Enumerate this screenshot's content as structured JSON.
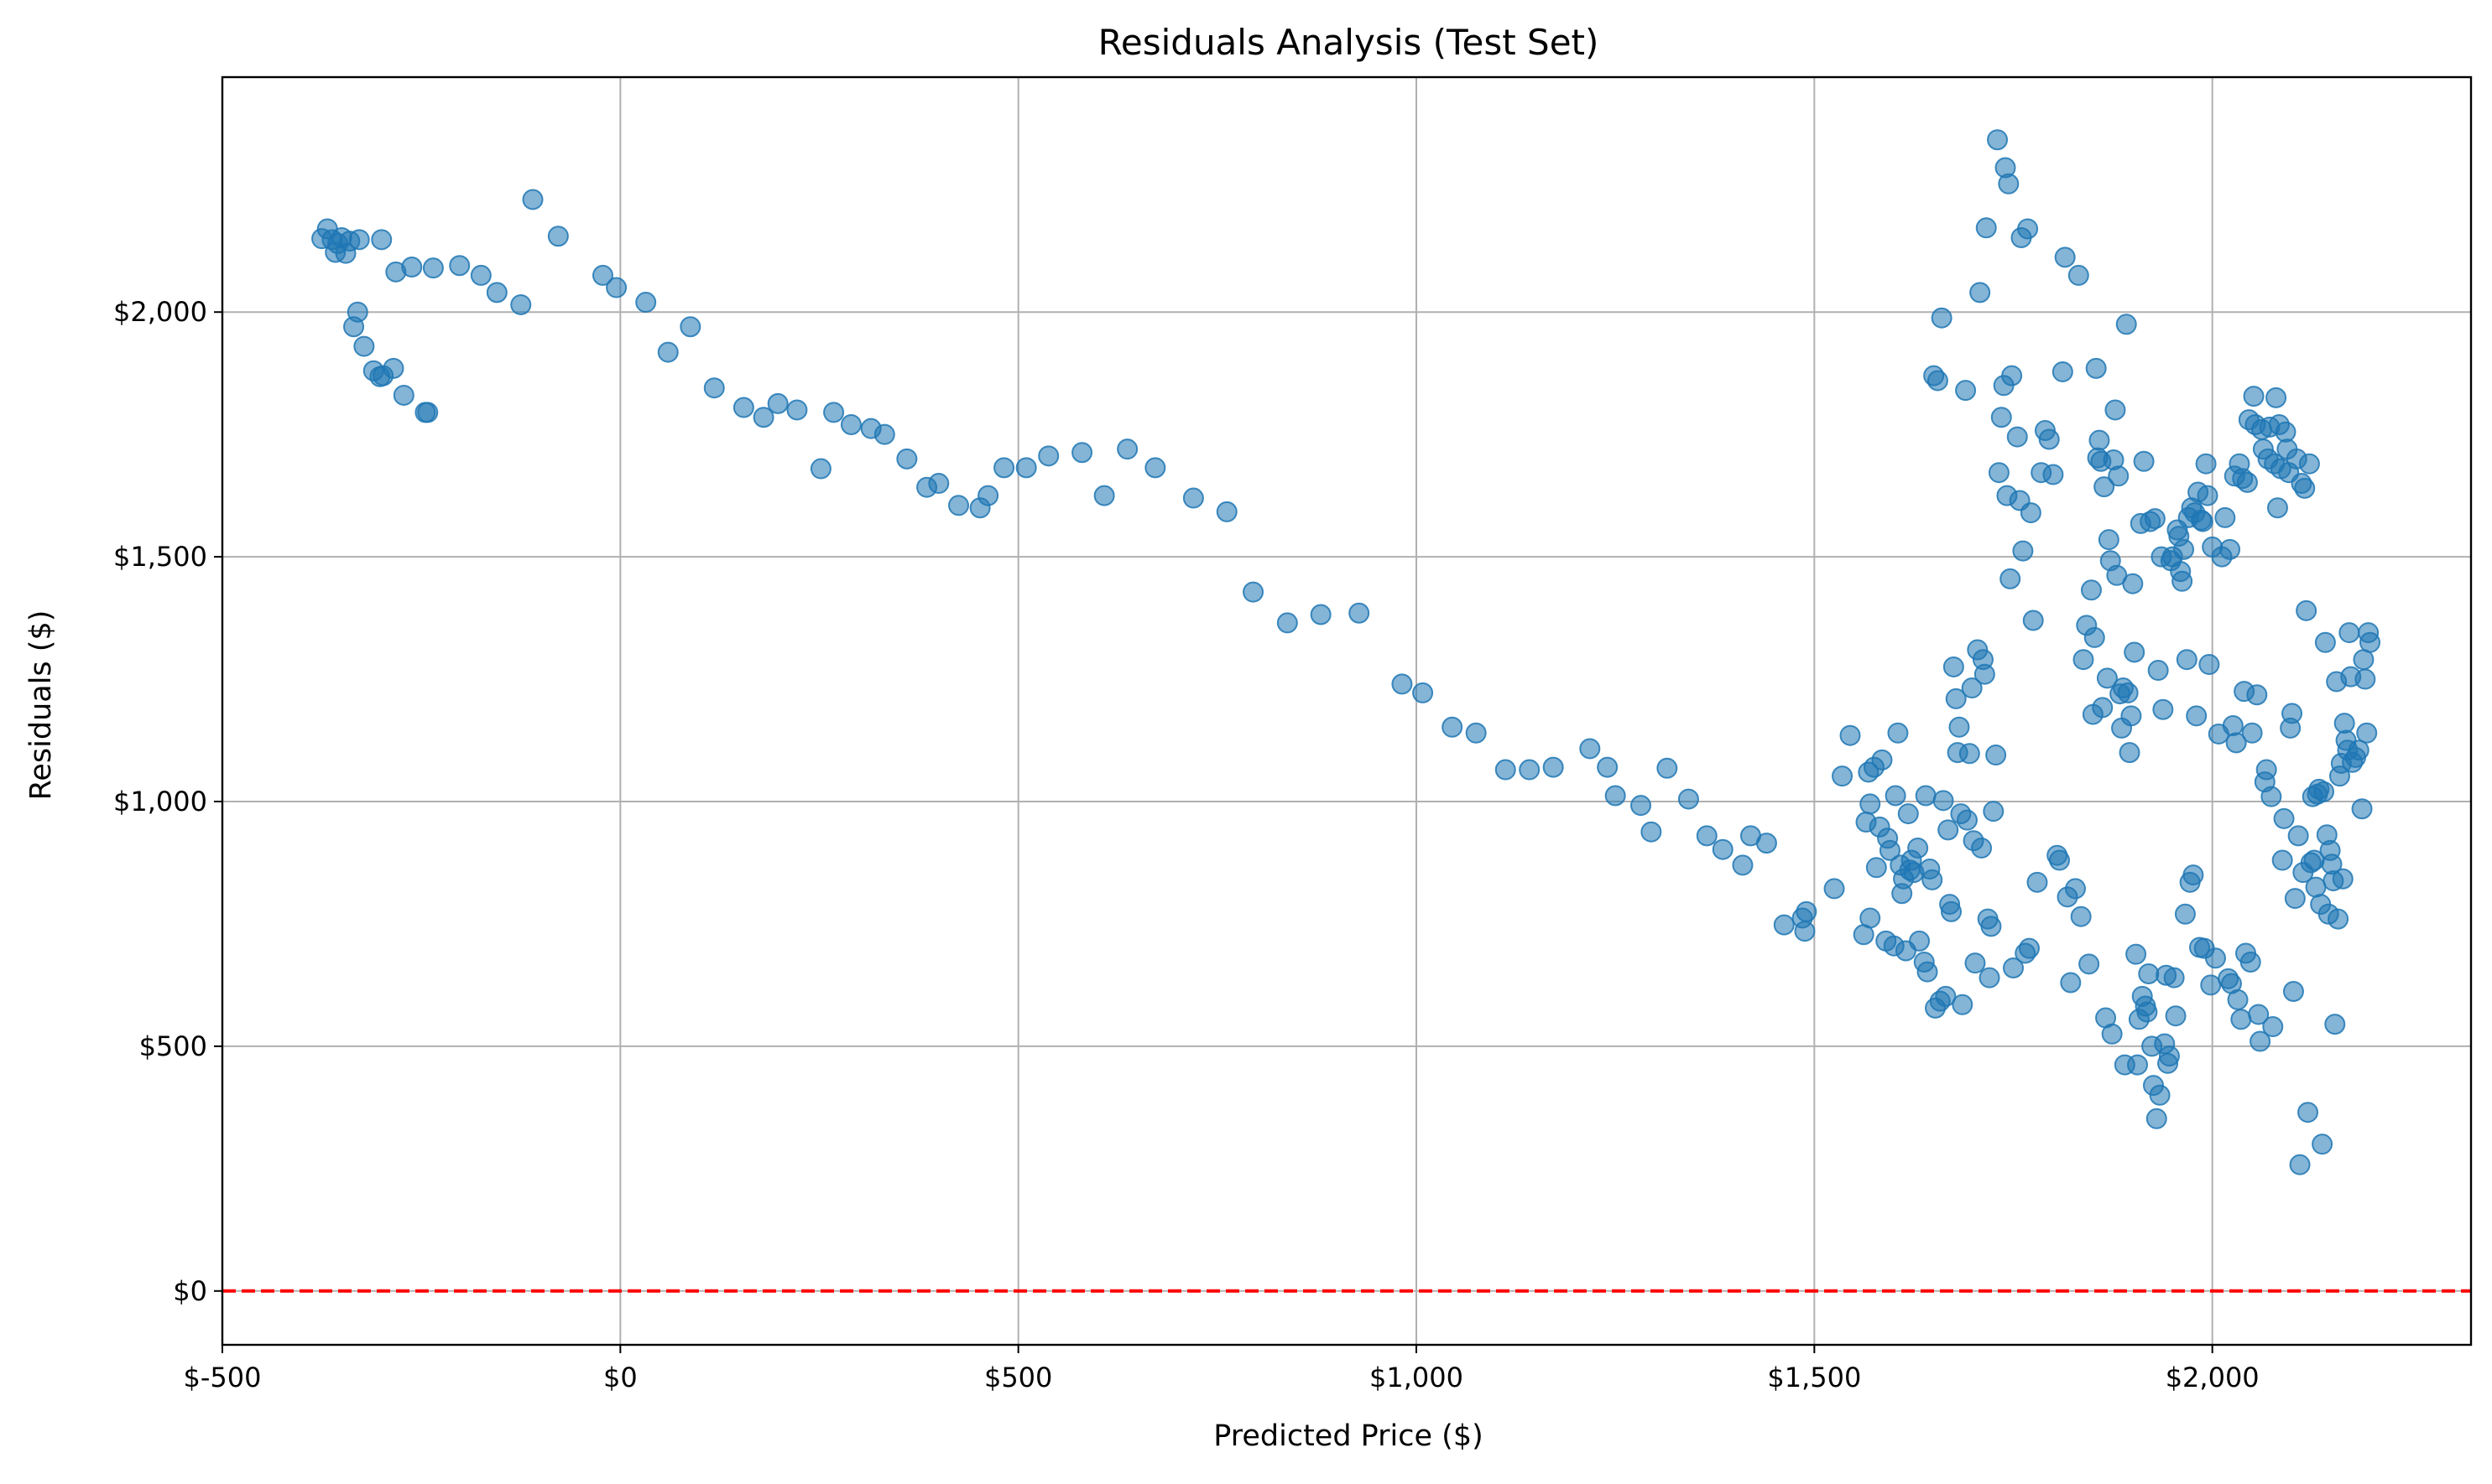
{
  "chart_data": {
    "type": "scatter",
    "title": "Residuals Analysis (Test Set)",
    "xlabel": "Predicted Price ($)",
    "ylabel": "Residuals ($)",
    "xlim": [
      -500,
      2325
    ],
    "ylim": [
      -110,
      2480
    ],
    "xticks": [
      {
        "value": -500,
        "label": "$-500"
      },
      {
        "value": 0,
        "label": "$0"
      },
      {
        "value": 500,
        "label": "$500"
      },
      {
        "value": 1000,
        "label": "$1,000"
      },
      {
        "value": 1500,
        "label": "$1,500"
      },
      {
        "value": 2000,
        "label": "$2,000"
      }
    ],
    "yticks": [
      {
        "value": 0,
        "label": "$0"
      },
      {
        "value": 500,
        "label": "$500"
      },
      {
        "value": 1000,
        "label": "$1,000"
      },
      {
        "value": 1500,
        "label": "$1,500"
      },
      {
        "value": 2000,
        "label": "$2,000"
      }
    ],
    "grid": true,
    "reference_line": {
      "y": 0,
      "color": "#ff0000",
      "style": "dashed"
    },
    "marker_color": "#1f77b4",
    "marker_alpha": 0.55,
    "points": [
      [
        -375,
        2150
      ],
      [
        -368,
        2170
      ],
      [
        -362,
        2148
      ],
      [
        -358,
        2122
      ],
      [
        -355,
        2140
      ],
      [
        -350,
        2152
      ],
      [
        -345,
        2120
      ],
      [
        -340,
        2145
      ],
      [
        -335,
        1970
      ],
      [
        -330,
        2000
      ],
      [
        -328,
        2148
      ],
      [
        -322,
        1930
      ],
      [
        -310,
        1880
      ],
      [
        -302,
        1868
      ],
      [
        -300,
        2148
      ],
      [
        -298,
        1870
      ],
      [
        -285,
        1885
      ],
      [
        -282,
        2082
      ],
      [
        -272,
        1830
      ],
      [
        -262,
        2092
      ],
      [
        -245,
        1795
      ],
      [
        -242,
        1795
      ],
      [
        -235,
        2090
      ],
      [
        -202,
        2095
      ],
      [
        -175,
        2075
      ],
      [
        -155,
        2040
      ],
      [
        -125,
        2015
      ],
      [
        -110,
        2230
      ],
      [
        -78,
        2155
      ],
      [
        -22,
        2075
      ],
      [
        -5,
        2050
      ],
      [
        32,
        2020
      ],
      [
        60,
        1918
      ],
      [
        88,
        1970
      ],
      [
        118,
        1845
      ],
      [
        155,
        1805
      ],
      [
        180,
        1785
      ],
      [
        198,
        1813
      ],
      [
        222,
        1800
      ],
      [
        252,
        1680
      ],
      [
        268,
        1795
      ],
      [
        290,
        1770
      ],
      [
        315,
        1762
      ],
      [
        332,
        1750
      ],
      [
        360,
        1700
      ],
      [
        385,
        1642
      ],
      [
        400,
        1650
      ],
      [
        425,
        1605
      ],
      [
        452,
        1600
      ],
      [
        462,
        1625
      ],
      [
        482,
        1682
      ],
      [
        510,
        1682
      ],
      [
        538,
        1706
      ],
      [
        580,
        1713
      ],
      [
        608,
        1625
      ],
      [
        637,
        1720
      ],
      [
        672,
        1682
      ],
      [
        720,
        1620
      ],
      [
        762,
        1592
      ],
      [
        795,
        1428
      ],
      [
        838,
        1365
      ],
      [
        880,
        1382
      ],
      [
        928,
        1385
      ],
      [
        982,
        1240
      ],
      [
        1008,
        1222
      ],
      [
        1045,
        1152
      ],
      [
        1075,
        1140
      ],
      [
        1112,
        1065
      ],
      [
        1142,
        1065
      ],
      [
        1172,
        1070
      ],
      [
        1218,
        1108
      ],
      [
        1240,
        1070
      ],
      [
        1250,
        1012
      ],
      [
        1282,
        992
      ],
      [
        1295,
        938
      ],
      [
        1315,
        1068
      ],
      [
        1342,
        1005
      ],
      [
        1365,
        930
      ],
      [
        1385,
        902
      ],
      [
        1410,
        870
      ],
      [
        1420,
        930
      ],
      [
        1440,
        915
      ],
      [
        1462,
        748
      ],
      [
        1485,
        762
      ],
      [
        1488,
        735
      ],
      [
        1490,
        775
      ],
      [
        1525,
        822
      ],
      [
        1535,
        1052
      ],
      [
        1545,
        1135
      ],
      [
        1562,
        728
      ],
      [
        1565,
        958
      ],
      [
        1568,
        1060
      ],
      [
        1570,
        762
      ],
      [
        1570,
        995
      ],
      [
        1575,
        1070
      ],
      [
        1578,
        865
      ],
      [
        1582,
        948
      ],
      [
        1585,
        1085
      ],
      [
        1590,
        715
      ],
      [
        1592,
        925
      ],
      [
        1595,
        900
      ],
      [
        1600,
        705
      ],
      [
        1602,
        1012
      ],
      [
        1605,
        1140
      ],
      [
        1608,
        870
      ],
      [
        1610,
        812
      ],
      [
        1612,
        842
      ],
      [
        1615,
        695
      ],
      [
        1618,
        975
      ],
      [
        1620,
        860
      ],
      [
        1622,
        880
      ],
      [
        1625,
        855
      ],
      [
        1630,
        905
      ],
      [
        1632,
        715
      ],
      [
        1638,
        672
      ],
      [
        1640,
        1012
      ],
      [
        1642,
        652
      ],
      [
        1645,
        862
      ],
      [
        1648,
        840
      ],
      [
        1650,
        1870
      ],
      [
        1652,
        578
      ],
      [
        1655,
        1860
      ],
      [
        1658,
        592
      ],
      [
        1660,
        1988
      ],
      [
        1662,
        1002
      ],
      [
        1665,
        602
      ],
      [
        1668,
        942
      ],
      [
        1670,
        790
      ],
      [
        1672,
        775
      ],
      [
        1675,
        1275
      ],
      [
        1678,
        1210
      ],
      [
        1680,
        1100
      ],
      [
        1682,
        1152
      ],
      [
        1684,
        975
      ],
      [
        1686,
        585
      ],
      [
        1690,
        1840
      ],
      [
        1692,
        962
      ],
      [
        1695,
        1098
      ],
      [
        1698,
        1232
      ],
      [
        1700,
        920
      ],
      [
        1702,
        670
      ],
      [
        1705,
        1310
      ],
      [
        1708,
        2040
      ],
      [
        1710,
        905
      ],
      [
        1712,
        1290
      ],
      [
        1714,
        1260
      ],
      [
        1716,
        2172
      ],
      [
        1718,
        760
      ],
      [
        1720,
        640
      ],
      [
        1722,
        745
      ],
      [
        1725,
        980
      ],
      [
        1728,
        1095
      ],
      [
        1730,
        2352
      ],
      [
        1732,
        1672
      ],
      [
        1735,
        1785
      ],
      [
        1738,
        1850
      ],
      [
        1740,
        2295
      ],
      [
        1742,
        1625
      ],
      [
        1744,
        2262
      ],
      [
        1746,
        1455
      ],
      [
        1748,
        1870
      ],
      [
        1750,
        660
      ],
      [
        1755,
        1745
      ],
      [
        1758,
        1615
      ],
      [
        1760,
        2152
      ],
      [
        1762,
        1512
      ],
      [
        1765,
        690
      ],
      [
        1768,
        2170
      ],
      [
        1770,
        700
      ],
      [
        1772,
        1590
      ],
      [
        1775,
        1370
      ],
      [
        1780,
        835
      ],
      [
        1785,
        1672
      ],
      [
        1790,
        1758
      ],
      [
        1795,
        1740
      ],
      [
        1800,
        1668
      ],
      [
        1805,
        890
      ],
      [
        1808,
        880
      ],
      [
        1812,
        1878
      ],
      [
        1815,
        2112
      ],
      [
        1818,
        805
      ],
      [
        1822,
        630
      ],
      [
        1828,
        822
      ],
      [
        1832,
        2075
      ],
      [
        1835,
        765
      ],
      [
        1838,
        1290
      ],
      [
        1842,
        1360
      ],
      [
        1845,
        668
      ],
      [
        1848,
        1432
      ],
      [
        1850,
        1178
      ],
      [
        1852,
        1335
      ],
      [
        1854,
        1885
      ],
      [
        1856,
        1702
      ],
      [
        1858,
        1738
      ],
      [
        1860,
        1695
      ],
      [
        1862,
        1192
      ],
      [
        1864,
        1643
      ],
      [
        1866,
        558
      ],
      [
        1868,
        1252
      ],
      [
        1870,
        1535
      ],
      [
        1872,
        1492
      ],
      [
        1874,
        525
      ],
      [
        1876,
        1698
      ],
      [
        1878,
        1800
      ],
      [
        1880,
        1462
      ],
      [
        1882,
        1665
      ],
      [
        1884,
        1220
      ],
      [
        1886,
        1150
      ],
      [
        1888,
        1232
      ],
      [
        1890,
        462
      ],
      [
        1892,
        1975
      ],
      [
        1894,
        1222
      ],
      [
        1896,
        1100
      ],
      [
        1898,
        1175
      ],
      [
        1900,
        1445
      ],
      [
        1902,
        1305
      ],
      [
        1904,
        688
      ],
      [
        1906,
        462
      ],
      [
        1908,
        555
      ],
      [
        1910,
        1568
      ],
      [
        1912,
        602
      ],
      [
        1914,
        1695
      ],
      [
        1916,
        582
      ],
      [
        1918,
        570
      ],
      [
        1920,
        648
      ],
      [
        1922,
        1572
      ],
      [
        1924,
        500
      ],
      [
        1926,
        420
      ],
      [
        1928,
        1578
      ],
      [
        1930,
        352
      ],
      [
        1932,
        1268
      ],
      [
        1934,
        400
      ],
      [
        1936,
        1500
      ],
      [
        1938,
        1188
      ],
      [
        1940,
        505
      ],
      [
        1942,
        645
      ],
      [
        1944,
        465
      ],
      [
        1946,
        480
      ],
      [
        1948,
        1492
      ],
      [
        1950,
        1500
      ],
      [
        1952,
        640
      ],
      [
        1954,
        562
      ],
      [
        1956,
        1555
      ],
      [
        1958,
        1542
      ],
      [
        1960,
        1470
      ],
      [
        1962,
        1450
      ],
      [
        1964,
        1515
      ],
      [
        1966,
        770
      ],
      [
        1968,
        1290
      ],
      [
        1970,
        1580
      ],
      [
        1972,
        835
      ],
      [
        1974,
        1600
      ],
      [
        1976,
        850
      ],
      [
        1978,
        1590
      ],
      [
        1980,
        1175
      ],
      [
        1982,
        1632
      ],
      [
        1984,
        702
      ],
      [
        1986,
        1575
      ],
      [
        1988,
        1572
      ],
      [
        1990,
        700
      ],
      [
        1992,
        1690
      ],
      [
        1994,
        1625
      ],
      [
        1996,
        1280
      ],
      [
        1998,
        625
      ],
      [
        2000,
        1520
      ],
      [
        2004,
        680
      ],
      [
        2008,
        1138
      ],
      [
        2012,
        1500
      ],
      [
        2016,
        1580
      ],
      [
        2020,
        638
      ],
      [
        2022,
        1515
      ],
      [
        2024,
        628
      ],
      [
        2026,
        1155
      ],
      [
        2028,
        1665
      ],
      [
        2030,
        1120
      ],
      [
        2032,
        595
      ],
      [
        2034,
        1690
      ],
      [
        2036,
        555
      ],
      [
        2038,
        1660
      ],
      [
        2040,
        1225
      ],
      [
        2042,
        690
      ],
      [
        2044,
        1652
      ],
      [
        2046,
        1780
      ],
      [
        2048,
        672
      ],
      [
        2050,
        1140
      ],
      [
        2052,
        1828
      ],
      [
        2054,
        1770
      ],
      [
        2056,
        1218
      ],
      [
        2058,
        565
      ],
      [
        2060,
        510
      ],
      [
        2062,
        1760
      ],
      [
        2064,
        1720
      ],
      [
        2066,
        1040
      ],
      [
        2068,
        1065
      ],
      [
        2070,
        1700
      ],
      [
        2072,
        1765
      ],
      [
        2074,
        1010
      ],
      [
        2076,
        540
      ],
      [
        2078,
        1690
      ],
      [
        2080,
        1825
      ],
      [
        2082,
        1600
      ],
      [
        2084,
        1770
      ],
      [
        2086,
        1680
      ],
      [
        2088,
        880
      ],
      [
        2090,
        965
      ],
      [
        2092,
        1755
      ],
      [
        2094,
        1720
      ],
      [
        2096,
        1672
      ],
      [
        2098,
        1150
      ],
      [
        2100,
        1180
      ],
      [
        2102,
        612
      ],
      [
        2104,
        802
      ],
      [
        2106,
        1700
      ],
      [
        2108,
        930
      ],
      [
        2110,
        258
      ],
      [
        2112,
        1650
      ],
      [
        2114,
        855
      ],
      [
        2116,
        1640
      ],
      [
        2118,
        1390
      ],
      [
        2120,
        365
      ],
      [
        2122,
        1690
      ],
      [
        2124,
        875
      ],
      [
        2126,
        1010
      ],
      [
        2128,
        880
      ],
      [
        2130,
        825
      ],
      [
        2132,
        1015
      ],
      [
        2134,
        1025
      ],
      [
        2136,
        790
      ],
      [
        2138,
        300
      ],
      [
        2140,
        1020
      ],
      [
        2142,
        1325
      ],
      [
        2144,
        932
      ],
      [
        2146,
        770
      ],
      [
        2148,
        900
      ],
      [
        2150,
        872
      ],
      [
        2152,
        838
      ],
      [
        2154,
        545
      ],
      [
        2156,
        1245
      ],
      [
        2158,
        760
      ],
      [
        2160,
        1052
      ],
      [
        2162,
        1078
      ],
      [
        2164,
        842
      ],
      [
        2166,
        1160
      ],
      [
        2168,
        1125
      ],
      [
        2170,
        1105
      ],
      [
        2172,
        1345
      ],
      [
        2174,
        1255
      ],
      [
        2176,
        1080
      ],
      [
        2180,
        1090
      ],
      [
        2184,
        1105
      ],
      [
        2188,
        985
      ],
      [
        2190,
        1290
      ],
      [
        2192,
        1250
      ],
      [
        2194,
        1140
      ],
      [
        2196,
        1345
      ],
      [
        2198,
        1325
      ]
    ]
  }
}
